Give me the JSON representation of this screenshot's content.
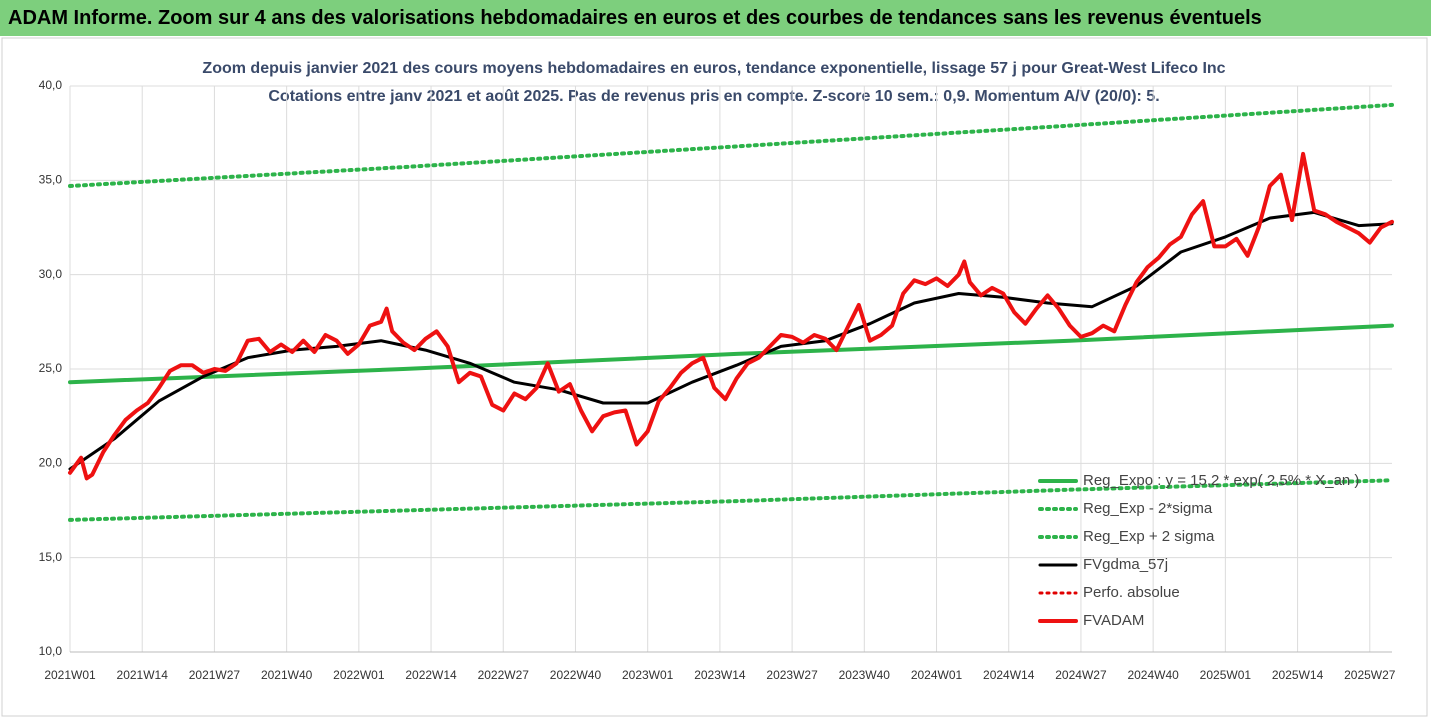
{
  "header": {
    "title": "ADAM Informe. Zoom sur 4 ans des valorisations hebdomadaires en euros et des courbes de tendances sans les revenus éventuels"
  },
  "chart_data": {
    "type": "line",
    "title": "Zoom depuis janvier 2021 des cours moyens hebdomadaires en euros, tendance exponentielle, lissage 57 j pour Great-West Lifeco Inc",
    "subtitle": "Cotations entre janv 2021 et août 2025.  Pas de revenus pris en compte. Z-score 10 sem.: 0,9. Momentum A/V (20/0): 5.",
    "xlim": [
      0,
      238
    ],
    "xticks": [
      {
        "value": 0,
        "label": "2021W01"
      },
      {
        "value": 13,
        "label": "2021W14"
      },
      {
        "value": 26,
        "label": "2021W27"
      },
      {
        "value": 39,
        "label": "2021W40"
      },
      {
        "value": 52,
        "label": "2022W01"
      },
      {
        "value": 65,
        "label": "2022W14"
      },
      {
        "value": 78,
        "label": "2022W27"
      },
      {
        "value": 91,
        "label": "2022W40"
      },
      {
        "value": 104,
        "label": "2023W01"
      },
      {
        "value": 117,
        "label": "2023W14"
      },
      {
        "value": 130,
        "label": "2023W27"
      },
      {
        "value": 143,
        "label": "2023W40"
      },
      {
        "value": 156,
        "label": "2024W01"
      },
      {
        "value": 169,
        "label": "2024W14"
      },
      {
        "value": 182,
        "label": "2024W27"
      },
      {
        "value": 195,
        "label": "2024W40"
      },
      {
        "value": 208,
        "label": "2025W01"
      },
      {
        "value": 221,
        "label": "2025W14"
      },
      {
        "value": 234,
        "label": "2025W27"
      }
    ],
    "ylim": [
      10,
      40
    ],
    "yticks": [
      {
        "value": 10,
        "label": "10,0"
      },
      {
        "value": 15,
        "label": "15,0"
      },
      {
        "value": 20,
        "label": "20,0"
      },
      {
        "value": 25,
        "label": "25,0"
      },
      {
        "value": 30,
        "label": "30,0"
      },
      {
        "value": 35,
        "label": "35,0"
      },
      {
        "value": 40,
        "label": "40,0"
      }
    ],
    "grid": true,
    "series": [
      {
        "name": "Reg_Expo : y = 15,2 * exp( 2,5% * X_an )",
        "color": "#2db34a",
        "style": "solid",
        "width": 4,
        "x": [
          0,
          60,
          120,
          180,
          238
        ],
        "values": [
          24.3,
          25.0,
          25.8,
          26.5,
          27.3
        ]
      },
      {
        "name": "Reg_Exp - 2*sigma",
        "color": "#2db34a",
        "style": "dotted",
        "width": 4,
        "x": [
          0,
          60,
          120,
          180,
          238
        ],
        "values": [
          17.0,
          17.5,
          18.0,
          18.6,
          19.1
        ]
      },
      {
        "name": "Reg_Exp + 2 sigma",
        "color": "#2db34a",
        "style": "dotted",
        "width": 4,
        "x": [
          0,
          60,
          120,
          180,
          238
        ],
        "values": [
          34.7,
          35.7,
          36.8,
          37.9,
          39.0
        ]
      },
      {
        "name": "FVgdma_57j",
        "color": "#000000",
        "style": "solid",
        "width": 3,
        "x": [
          0,
          8,
          16,
          24,
          32,
          40,
          48,
          56,
          64,
          72,
          80,
          88,
          96,
          104,
          112,
          120,
          128,
          136,
          144,
          152,
          160,
          168,
          176,
          184,
          192,
          200,
          208,
          216,
          224,
          232,
          238
        ],
        "values": [
          19.7,
          21.3,
          23.3,
          24.6,
          25.6,
          26.0,
          26.2,
          26.5,
          26.0,
          25.3,
          24.3,
          23.9,
          23.2,
          23.2,
          24.3,
          25.2,
          26.2,
          26.5,
          27.4,
          28.5,
          29.0,
          28.8,
          28.5,
          28.3,
          29.4,
          31.2,
          32.0,
          33.0,
          33.3,
          32.6,
          32.7
        ]
      },
      {
        "name": "Perfo. absolue",
        "color": "#e00000",
        "style": "dotted",
        "width": 3,
        "x": [],
        "values": []
      },
      {
        "name": "FVADAM",
        "color": "#ee1111",
        "style": "solid",
        "width": 4,
        "x": [
          0,
          2,
          3,
          4,
          6,
          8,
          10,
          12,
          14,
          16,
          18,
          20,
          22,
          24,
          26,
          28,
          30,
          32,
          34,
          36,
          38,
          40,
          42,
          44,
          46,
          48,
          50,
          52,
          54,
          56,
          57,
          58,
          60,
          62,
          64,
          66,
          68,
          70,
          72,
          74,
          76,
          78,
          80,
          82,
          84,
          86,
          88,
          90,
          92,
          94,
          96,
          98,
          100,
          102,
          104,
          106,
          108,
          110,
          112,
          114,
          116,
          118,
          120,
          122,
          124,
          126,
          128,
          130,
          132,
          134,
          136,
          138,
          140,
          142,
          144,
          146,
          148,
          150,
          152,
          154,
          156,
          158,
          160,
          161,
          162,
          164,
          166,
          168,
          170,
          172,
          174,
          176,
          178,
          180,
          182,
          184,
          186,
          188,
          190,
          192,
          194,
          196,
          198,
          200,
          202,
          204,
          206,
          208,
          210,
          212,
          214,
          216,
          218,
          220,
          222,
          224,
          226,
          228,
          230,
          232,
          234,
          236,
          238
        ],
        "values": [
          19.5,
          20.3,
          19.2,
          19.4,
          20.6,
          21.5,
          22.3,
          22.8,
          23.2,
          24.0,
          24.9,
          25.2,
          25.2,
          24.8,
          25.0,
          24.9,
          25.3,
          26.5,
          26.6,
          25.9,
          26.3,
          25.9,
          26.5,
          25.9,
          26.8,
          26.5,
          25.8,
          26.3,
          27.3,
          27.5,
          28.2,
          27.0,
          26.4,
          26.0,
          26.6,
          27.0,
          26.2,
          24.3,
          24.8,
          24.6,
          23.1,
          22.8,
          23.7,
          23.4,
          24.0,
          25.3,
          23.8,
          24.2,
          22.8,
          21.7,
          22.5,
          22.7,
          22.8,
          21.0,
          21.7,
          23.3,
          24.0,
          24.8,
          25.3,
          25.6,
          24.0,
          23.4,
          24.5,
          25.3,
          25.6,
          26.2,
          26.8,
          26.7,
          26.4,
          26.8,
          26.6,
          26.0,
          27.2,
          28.4,
          26.5,
          26.8,
          27.3,
          29.0,
          29.7,
          29.5,
          29.8,
          29.4,
          30.0,
          30.7,
          29.6,
          28.9,
          29.3,
          29.0,
          28.0,
          27.4,
          28.2,
          28.9,
          28.2,
          27.3,
          26.7,
          26.9,
          27.3,
          27.0,
          28.4,
          29.6,
          30.4,
          30.9,
          31.6,
          32.0,
          33.2,
          33.9,
          31.5,
          31.5,
          31.9,
          31.0,
          32.5,
          34.7,
          35.3,
          32.9,
          36.4,
          33.4,
          33.2,
          32.8,
          32.5,
          32.2,
          31.7,
          32.5,
          32.8
        ]
      }
    ]
  }
}
